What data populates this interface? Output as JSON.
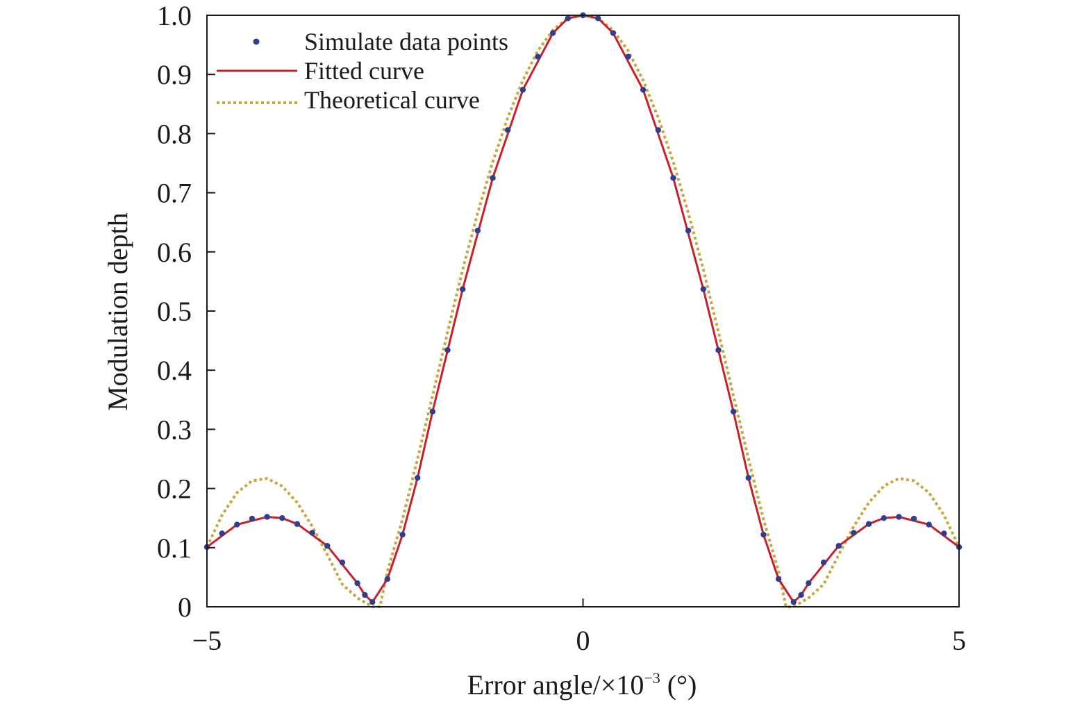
{
  "chart_data": {
    "type": "line",
    "title": "",
    "xlabel": "Error angle/×10",
    "xlabel_exponent": "−3",
    "xlabel_unit": " (°)",
    "ylabel": "Modulation depth",
    "xlim": [
      -5,
      5
    ],
    "ylim": [
      0,
      1.0
    ],
    "xticks": [
      -5,
      0,
      5
    ],
    "xtick_labels": [
      "−5",
      "0",
      "5"
    ],
    "yticks": [
      0,
      0.1,
      0.2,
      0.3,
      0.4,
      0.5,
      0.6,
      0.7,
      0.8,
      0.9,
      1.0
    ],
    "ytick_labels": [
      "0",
      "0.1",
      "0.2",
      "0.3",
      "0.4",
      "0.5",
      "0.6",
      "0.7",
      "0.8",
      "0.9",
      "1.0"
    ],
    "grid": false,
    "legend_position": "top-left",
    "series": [
      {
        "name": "Simulate data points",
        "style": "markers",
        "color": "#2e3f8f",
        "x": [
          -5.0,
          -4.8,
          -4.6,
          -4.4,
          -4.2,
          -4.0,
          -3.8,
          -3.6,
          -3.4,
          -3.2,
          -3.0,
          -2.9,
          -2.8,
          -2.6,
          -2.4,
          -2.2,
          -2.0,
          -1.8,
          -1.6,
          -1.4,
          -1.2,
          -1.0,
          -0.8,
          -0.6,
          -0.4,
          -0.2,
          0.0,
          0.2,
          0.4,
          0.6,
          0.8,
          1.0,
          1.2,
          1.4,
          1.6,
          1.8,
          2.0,
          2.2,
          2.4,
          2.6,
          2.8,
          2.9,
          3.0,
          3.2,
          3.4,
          3.6,
          3.8,
          4.0,
          4.2,
          4.4,
          4.6,
          4.8,
          5.0
        ],
        "y": [
          0.101,
          0.124,
          0.139,
          0.149,
          0.152,
          0.15,
          0.14,
          0.125,
          0.103,
          0.075,
          0.04,
          0.02,
          0.008,
          0.047,
          0.122,
          0.218,
          0.33,
          0.434,
          0.537,
          0.636,
          0.725,
          0.806,
          0.874,
          0.93,
          0.97,
          0.995,
          1.0,
          0.995,
          0.97,
          0.93,
          0.874,
          0.806,
          0.725,
          0.636,
          0.537,
          0.434,
          0.33,
          0.218,
          0.122,
          0.047,
          0.008,
          0.02,
          0.04,
          0.075,
          0.103,
          0.125,
          0.14,
          0.15,
          0.152,
          0.149,
          0.139,
          0.124,
          0.101
        ]
      },
      {
        "name": "Fitted curve",
        "style": "solid",
        "color": "#c8202a",
        "x": [
          -5.0,
          -4.6,
          -4.2,
          -4.0,
          -3.8,
          -3.4,
          -3.0,
          -2.9,
          -2.8,
          -2.6,
          -2.4,
          -2.2,
          -2.0,
          -1.6,
          -1.2,
          -0.8,
          -0.4,
          -0.2,
          0.0,
          0.2,
          0.4,
          0.8,
          1.2,
          1.6,
          2.0,
          2.2,
          2.4,
          2.6,
          2.8,
          2.9,
          3.0,
          3.4,
          3.8,
          4.0,
          4.2,
          4.6,
          5.0
        ],
        "y": [
          0.101,
          0.139,
          0.152,
          0.15,
          0.14,
          0.103,
          0.04,
          0.02,
          0.008,
          0.047,
          0.122,
          0.218,
          0.33,
          0.537,
          0.725,
          0.874,
          0.97,
          0.995,
          1.0,
          0.995,
          0.97,
          0.874,
          0.725,
          0.537,
          0.33,
          0.218,
          0.122,
          0.047,
          0.008,
          0.02,
          0.04,
          0.103,
          0.14,
          0.15,
          0.152,
          0.139,
          0.101
        ]
      },
      {
        "name": "Theoretical curve",
        "style": "dotted",
        "color": "#c8a63f",
        "x": [
          -5.0,
          -4.8,
          -4.6,
          -4.4,
          -4.2,
          -4.0,
          -3.8,
          -3.6,
          -3.4,
          -3.2,
          -3.0,
          -2.8,
          -2.7,
          -2.6,
          -2.4,
          -2.2,
          -2.0,
          -1.8,
          -1.6,
          -1.4,
          -1.2,
          -1.0,
          -0.8,
          -0.6,
          -0.4,
          -0.2,
          0.0,
          0.2,
          0.4,
          0.6,
          0.8,
          1.0,
          1.2,
          1.4,
          1.6,
          1.8,
          2.0,
          2.2,
          2.4,
          2.6,
          2.7,
          2.8,
          3.0,
          3.2,
          3.4,
          3.6,
          3.8,
          4.0,
          4.2,
          4.4,
          4.6,
          4.8,
          5.0
        ],
        "y": [
          0.101,
          0.155,
          0.193,
          0.213,
          0.217,
          0.204,
          0.176,
          0.136,
          0.088,
          0.038,
          0.015,
          0.0,
          0.0,
          0.06,
          0.148,
          0.25,
          0.357,
          0.465,
          0.57,
          0.666,
          0.752,
          0.827,
          0.89,
          0.94,
          0.975,
          0.995,
          1.0,
          0.995,
          0.975,
          0.94,
          0.89,
          0.827,
          0.752,
          0.666,
          0.57,
          0.465,
          0.357,
          0.25,
          0.148,
          0.06,
          0.0,
          0.0,
          0.015,
          0.038,
          0.088,
          0.136,
          0.176,
          0.204,
          0.217,
          0.213,
          0.193,
          0.155,
          0.101
        ]
      }
    ]
  }
}
